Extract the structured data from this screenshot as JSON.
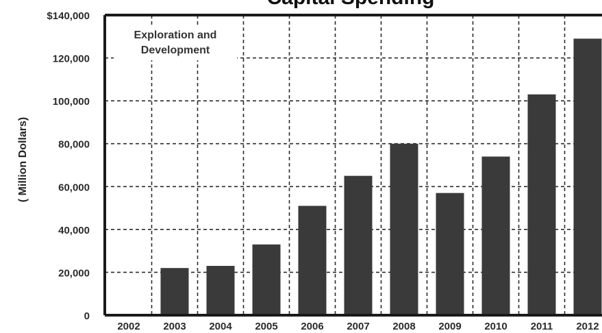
{
  "chart_data": {
    "type": "bar",
    "title": "Capital Spending",
    "ylabel": "( Million Dollars)",
    "xlabel": "",
    "annotation": [
      "Exploration and",
      "Development"
    ],
    "categories": [
      "2002",
      "2003",
      "2004",
      "2005",
      "2006",
      "2007",
      "2008",
      "2009",
      "2010",
      "2011",
      "2012"
    ],
    "values": [
      0,
      22000,
      23000,
      33000,
      51000,
      65000,
      80000,
      57000,
      74000,
      103000,
      129000
    ],
    "ylim": [
      0,
      140000
    ],
    "yticks": [
      0,
      20000,
      40000,
      60000,
      80000,
      100000,
      120000,
      140000
    ],
    "ytick_labels": [
      "0",
      "20,000",
      "40,000",
      "60,000",
      "80,000",
      "100,000",
      "120,000",
      "$140,000"
    ],
    "grid": true,
    "colors": {
      "bar": "#3a3a3a",
      "grid": "#2a2a2a",
      "axis": "#1a1a1a"
    }
  }
}
